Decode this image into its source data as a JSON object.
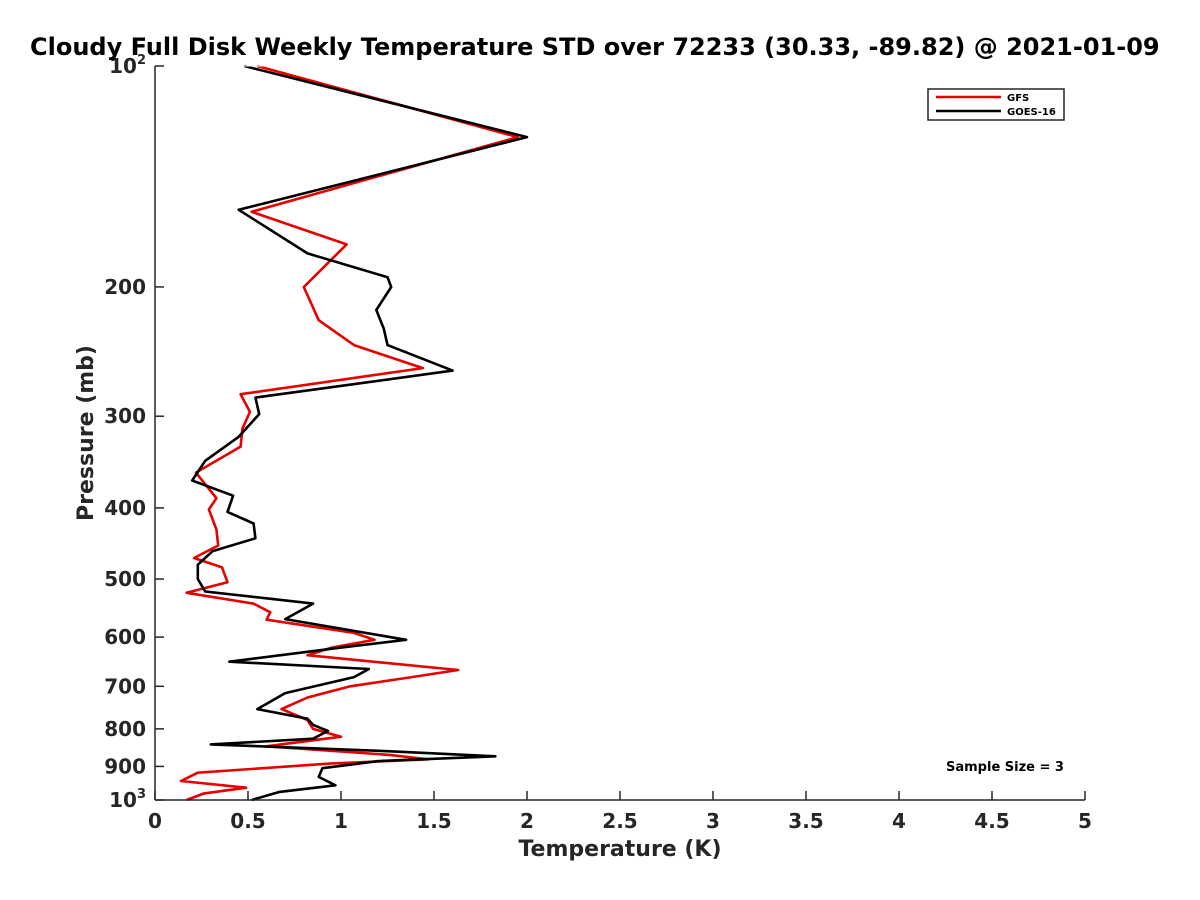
{
  "chart_data": {
    "type": "line",
    "title": "Cloudy Full Disk Weekly Temperature STD over 72233 (30.33, -89.82) @ 2021-01-09",
    "xlabel": "Temperature (K)",
    "ylabel": "Pressure (mb)",
    "xlim": [
      0,
      5
    ],
    "ylim": [
      100,
      1000
    ],
    "yscale": "log",
    "y_reversed": true,
    "xticks": [
      0,
      0.5,
      1,
      1.5,
      2,
      2.5,
      3,
      3.5,
      4,
      4.5,
      5
    ],
    "xtick_labels": [
      "0",
      "0.5",
      "1",
      "1.5",
      "2",
      "2.5",
      "3",
      "3.5",
      "4",
      "4.5",
      "5"
    ],
    "yticks": [
      {
        "value": 100,
        "base": "10",
        "exp": "2"
      },
      {
        "value": 200,
        "label": "200"
      },
      {
        "value": 300,
        "label": "300"
      },
      {
        "value": 400,
        "label": "400"
      },
      {
        "value": 500,
        "label": "500"
      },
      {
        "value": 600,
        "label": "600"
      },
      {
        "value": 700,
        "label": "700"
      },
      {
        "value": 800,
        "label": "800"
      },
      {
        "value": 900,
        "label": "900"
      },
      {
        "value": 1000,
        "base": "10",
        "exp": "3"
      }
    ],
    "legend_position": "top-right",
    "annotation": "Sample Size = 3",
    "series": [
      {
        "name": "GFS",
        "color": "#e60000",
        "points": [
          [
            0.55,
            100
          ],
          [
            1.95,
            125
          ],
          [
            0.52,
            158
          ],
          [
            1.03,
            175
          ],
          [
            0.8,
            200
          ],
          [
            0.88,
            222
          ],
          [
            1.07,
            240
          ],
          [
            1.44,
            258
          ],
          [
            0.46,
            280
          ],
          [
            0.51,
            296
          ],
          [
            0.47,
            312
          ],
          [
            0.46,
            330
          ],
          [
            0.22,
            358
          ],
          [
            0.33,
            388
          ],
          [
            0.29,
            402
          ],
          [
            0.33,
            428
          ],
          [
            0.34,
            450
          ],
          [
            0.21,
            468
          ],
          [
            0.36,
            482
          ],
          [
            0.39,
            505
          ],
          [
            0.17,
            522
          ],
          [
            0.53,
            540
          ],
          [
            0.62,
            555
          ],
          [
            0.6,
            568
          ],
          [
            1.07,
            592
          ],
          [
            1.18,
            605
          ],
          [
            0.95,
            620
          ],
          [
            0.82,
            635
          ],
          [
            1.63,
            665
          ],
          [
            1.38,
            680
          ],
          [
            1.05,
            700
          ],
          [
            0.82,
            725
          ],
          [
            0.68,
            752
          ],
          [
            0.82,
            778
          ],
          [
            0.85,
            800
          ],
          [
            1.0,
            820
          ],
          [
            0.6,
            845
          ],
          [
            1.26,
            868
          ],
          [
            1.47,
            880
          ],
          [
            0.94,
            892
          ],
          [
            0.58,
            905
          ],
          [
            0.23,
            918
          ],
          [
            0.14,
            942
          ],
          [
            0.49,
            962
          ],
          [
            0.26,
            980
          ],
          [
            0.17,
            1000
          ]
        ]
      },
      {
        "name": "GOES-16",
        "color": "#000000",
        "points": [
          [
            0.48,
            100
          ],
          [
            2.0,
            125
          ],
          [
            0.45,
            157
          ],
          [
            0.82,
            180
          ],
          [
            1.25,
            194
          ],
          [
            1.27,
            200
          ],
          [
            1.19,
            215
          ],
          [
            1.23,
            228
          ],
          [
            1.25,
            240
          ],
          [
            1.6,
            260
          ],
          [
            0.54,
            283
          ],
          [
            0.56,
            298
          ],
          [
            0.45,
            320
          ],
          [
            0.27,
            345
          ],
          [
            0.2,
            367
          ],
          [
            0.42,
            385
          ],
          [
            0.39,
            405
          ],
          [
            0.53,
            420
          ],
          [
            0.54,
            440
          ],
          [
            0.31,
            458
          ],
          [
            0.23,
            478
          ],
          [
            0.23,
            500
          ],
          [
            0.27,
            520
          ],
          [
            0.85,
            540
          ],
          [
            0.7,
            567
          ],
          [
            1.35,
            605
          ],
          [
            1.0,
            620
          ],
          [
            0.4,
            648
          ],
          [
            1.15,
            663
          ],
          [
            1.07,
            680
          ],
          [
            0.7,
            715
          ],
          [
            0.55,
            752
          ],
          [
            0.82,
            775
          ],
          [
            0.85,
            790
          ],
          [
            0.93,
            805
          ],
          [
            0.85,
            825
          ],
          [
            0.3,
            840
          ],
          [
            1.25,
            858
          ],
          [
            1.83,
            872
          ],
          [
            1.2,
            885
          ],
          [
            0.9,
            905
          ],
          [
            0.88,
            930
          ],
          [
            0.97,
            955
          ],
          [
            0.67,
            975
          ],
          [
            0.52,
            1000
          ]
        ]
      }
    ]
  }
}
